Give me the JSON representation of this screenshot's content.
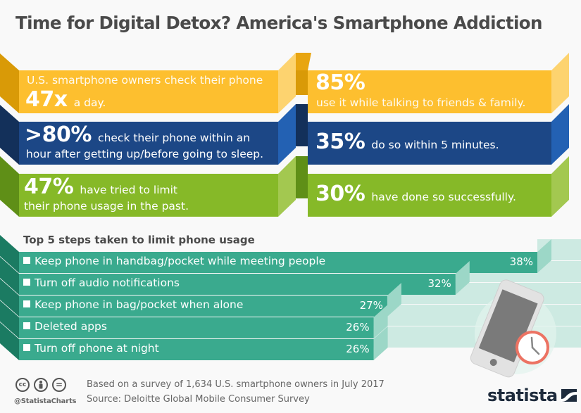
{
  "title": "Time for Digital Detox? America's Smartphone Addiction",
  "colors": {
    "yellow": "#fdbf2f",
    "yellow_dark": "#d99a07",
    "yellow_light": "#fdd36f",
    "blue": "#1c4786",
    "blue_dark": "#13305a",
    "blue_light": "#2361b3",
    "green": "#86b928",
    "green_dark": "#5f8f17",
    "green_light": "#a3c850",
    "teal": "#3aaa8e",
    "teal_dark": "#1b7b62",
    "teal_light": "#9cd7c7",
    "teal_bg": "#cdeae2",
    "title_gray": "#4a4a4a",
    "clock": "#ec7363"
  },
  "stats": {
    "left": [
      {
        "line1": "U.S. smartphone owners check their phone",
        "big": "47x",
        "line2": "a day."
      },
      {
        "big": "&gt;80%",
        "big_text": ">80%",
        "line1": "check their phone within an",
        "line2": "hour after getting up/before going to sleep."
      },
      {
        "big": "47%",
        "line1": "have tried to limit",
        "line2": "their phone usage in the past."
      }
    ],
    "right": [
      {
        "big": "85%",
        "line1": "use it while talking to friends & family."
      },
      {
        "big": "35%",
        "line1": "do so within 5 minutes."
      },
      {
        "big": "30%",
        "line1": "have done so successfully."
      }
    ]
  },
  "chart_data": {
    "type": "bar",
    "orientation": "horizontal",
    "title": "Top 5 steps taken to limit phone usage",
    "categories": [
      "Keep phone in handbag/pocket while meeting people",
      "Turn off audio notifications",
      "Keep phone in bag/pocket when alone",
      "Deleted apps",
      "Turn off phone at night"
    ],
    "values": [
      38,
      32,
      27,
      26,
      26
    ],
    "value_labels": [
      "38%",
      "32%",
      "27%",
      "26%",
      "26%"
    ],
    "unit": "%",
    "xlim": [
      0,
      38
    ],
    "grid": false,
    "legend": "none"
  },
  "footer": {
    "note": "Based on a survey of 1,634 U.S. smartphone owners in July 2017",
    "source": "Source: Deloitte Global Mobile Consumer Survey",
    "handle": "@StatistaCharts",
    "logo": "statista",
    "license_icons": [
      "cc-icon",
      "by-icon",
      "nd-icon"
    ],
    "license_glyphs": [
      "cc",
      "",
      "="
    ]
  }
}
